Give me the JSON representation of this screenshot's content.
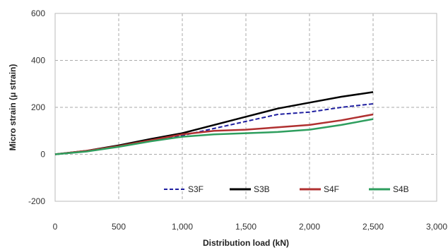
{
  "chart_data": {
    "type": "line",
    "title": "",
    "xlabel": "Distribution load (kN)",
    "ylabel": "Micro strain (μ strain)",
    "xlim": [
      0,
      3000
    ],
    "ylim": [
      -200,
      600
    ],
    "x_ticks": [
      0,
      500,
      1000,
      1500,
      2000,
      2500,
      3000
    ],
    "y_ticks": [
      -200,
      0,
      200,
      400,
      600
    ],
    "x_tick_labels": [
      "0",
      "500",
      "1,000",
      "1,500",
      "2,000",
      "2,500",
      "3,000"
    ],
    "y_tick_labels": [
      "-200",
      "0",
      "200",
      "400",
      "600"
    ],
    "grid": true,
    "legend_position": "bottom-right, inside plot",
    "series": [
      {
        "name": "S3F",
        "color": "#1f1fa0",
        "style": "dashed",
        "x": [
          0,
          250,
          500,
          750,
          1000,
          1250,
          1500,
          1750,
          2000,
          2250,
          2500
        ],
        "y": [
          0,
          15,
          35,
          60,
          80,
          110,
          140,
          170,
          180,
          200,
          215
        ]
      },
      {
        "name": "S3B",
        "color": "#000000",
        "style": "solid",
        "x": [
          0,
          250,
          500,
          750,
          1000,
          1250,
          1500,
          1750,
          2000,
          2250,
          2500
        ],
        "y": [
          0,
          15,
          38,
          65,
          90,
          125,
          160,
          195,
          220,
          245,
          265
        ]
      },
      {
        "name": "S4F",
        "color": "#b03030",
        "style": "solid",
        "x": [
          0,
          250,
          500,
          750,
          1000,
          1250,
          1500,
          1750,
          2000,
          2250,
          2500
        ],
        "y": [
          0,
          15,
          35,
          60,
          85,
          100,
          105,
          115,
          125,
          145,
          170
        ]
      },
      {
        "name": "S4B",
        "color": "#2e9e5e",
        "style": "solid",
        "x": [
          0,
          250,
          500,
          750,
          1000,
          1250,
          1500,
          1750,
          2000,
          2250,
          2500
        ],
        "y": [
          0,
          12,
          32,
          55,
          75,
          85,
          90,
          95,
          105,
          125,
          150
        ]
      }
    ]
  }
}
